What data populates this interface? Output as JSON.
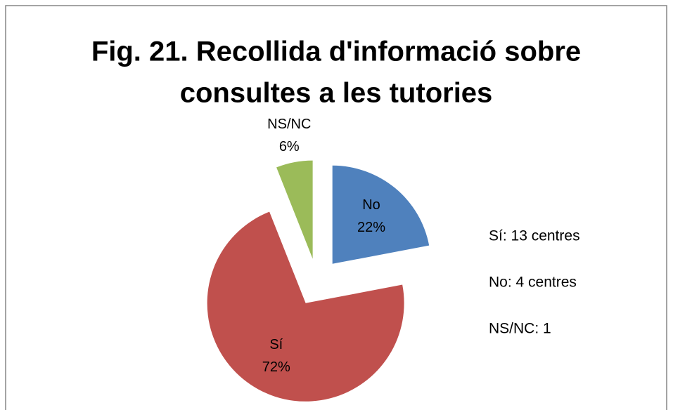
{
  "chart_data": {
    "type": "pie",
    "title": [
      "Fig. 21. Recollida d'informació sobre",
      "consultes a les tutories"
    ],
    "categories": [
      "No",
      "Sí",
      "NS/NC"
    ],
    "values": [
      22,
      72,
      6
    ],
    "value_labels": [
      "22%",
      "72%",
      "6%"
    ],
    "colors": [
      "#4f81bd",
      "#c0504d",
      "#9bbb59"
    ],
    "exploded": true,
    "annotations": [
      "Sí: 13 centres",
      "No: 4 centres",
      "NS/NC: 1"
    ]
  }
}
